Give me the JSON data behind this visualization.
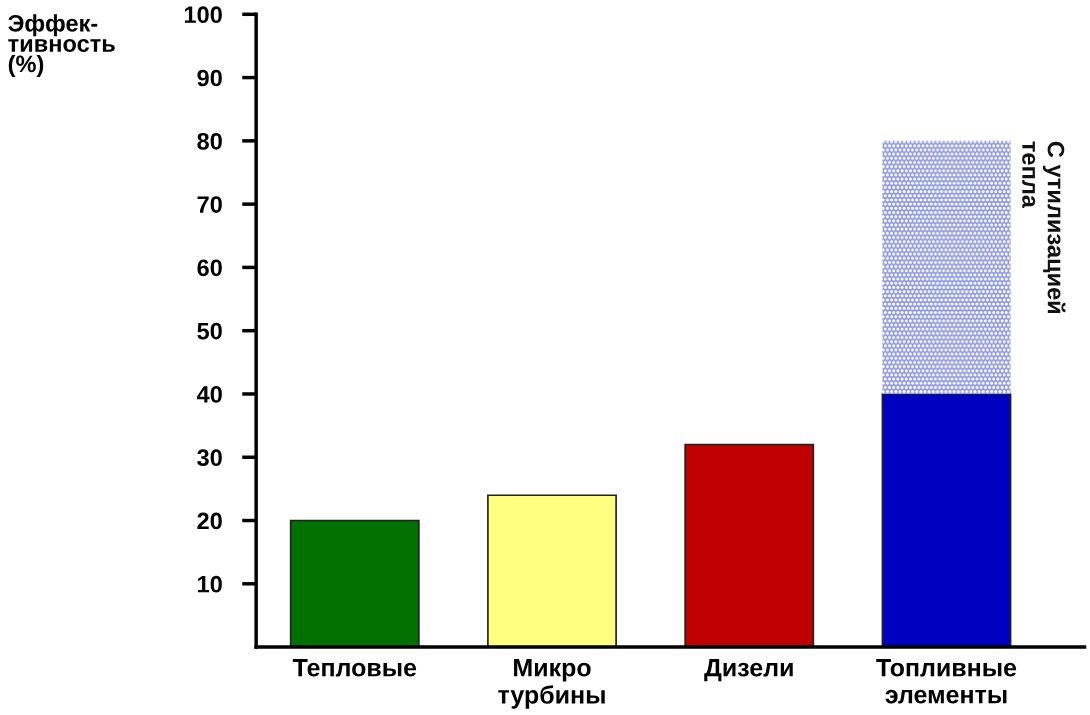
{
  "chart_data": {
    "type": "bar",
    "stacked": true,
    "ylabel": "Эффек-\nтивность\n(%)",
    "categories": [
      "Тепловые",
      "Микро\nтурбины",
      "Дизели",
      "Топливные\nэлементы"
    ],
    "series": [
      {
        "colors": [
          "#007000",
          "#ffff80",
          "#c00000",
          "#0000c0"
        ],
        "values": [
          20,
          24,
          32,
          40
        ]
      },
      {
        "name": "С утилизацией\nтепла",
        "color": "#8c96e0",
        "values": [
          null,
          null,
          null,
          40
        ]
      }
    ],
    "ylim": [
      0,
      100
    ],
    "yticks": [
      10,
      20,
      30,
      40,
      50,
      60,
      70,
      80,
      90,
      100
    ],
    "grid": false,
    "legend": false
  }
}
